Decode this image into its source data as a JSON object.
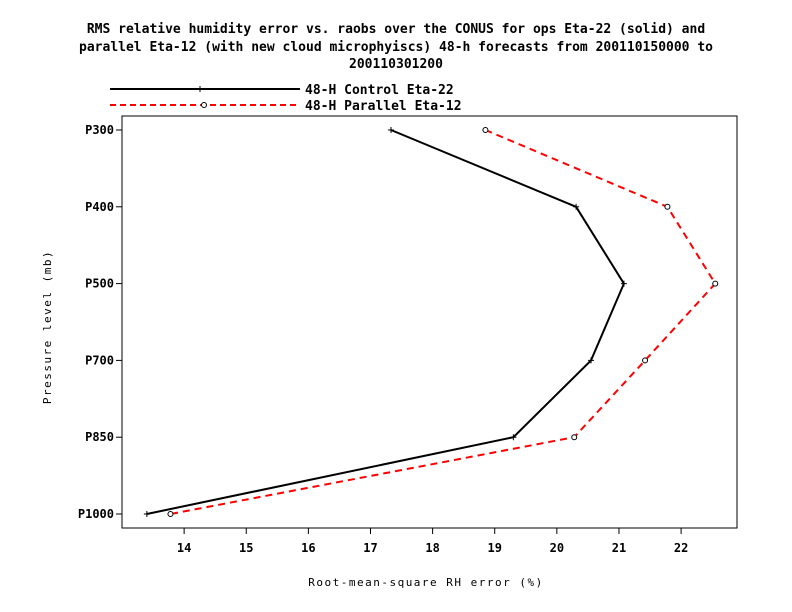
{
  "chart_data": {
    "type": "line",
    "title_lines": [
      "RMS relative humidity error vs. raobs over the CONUS for ops Eta-22 (solid) and",
      "parallel Eta-12 (with new cloud microphyiscs) 48-h forecasts from 200110150000 to",
      "200110301200"
    ],
    "xlabel": "Root-mean-square RH error (%)",
    "ylabel": "Pressure level (mb)",
    "xlim": [
      13,
      22.9
    ],
    "x_ticks": [
      "14",
      "15",
      "16",
      "17",
      "18",
      "19",
      "20",
      "21",
      "22"
    ],
    "categories": [
      "P300",
      "P400",
      "P500",
      "P700",
      "P850",
      "P1000"
    ],
    "grid": false,
    "legend_position": "top-left",
    "series": [
      {
        "name": "48-H Control Eta-22",
        "color": "#000000",
        "line_style": "solid",
        "marker": "plus",
        "values": [
          17.33,
          20.31,
          21.08,
          20.55,
          19.3,
          13.4
        ]
      },
      {
        "name": "48-H Parallel Eta-12",
        "color": "#ff0000",
        "line_style": "dashed",
        "marker": "circle",
        "values": [
          18.85,
          21.78,
          22.55,
          21.42,
          20.28,
          13.78
        ]
      }
    ]
  }
}
